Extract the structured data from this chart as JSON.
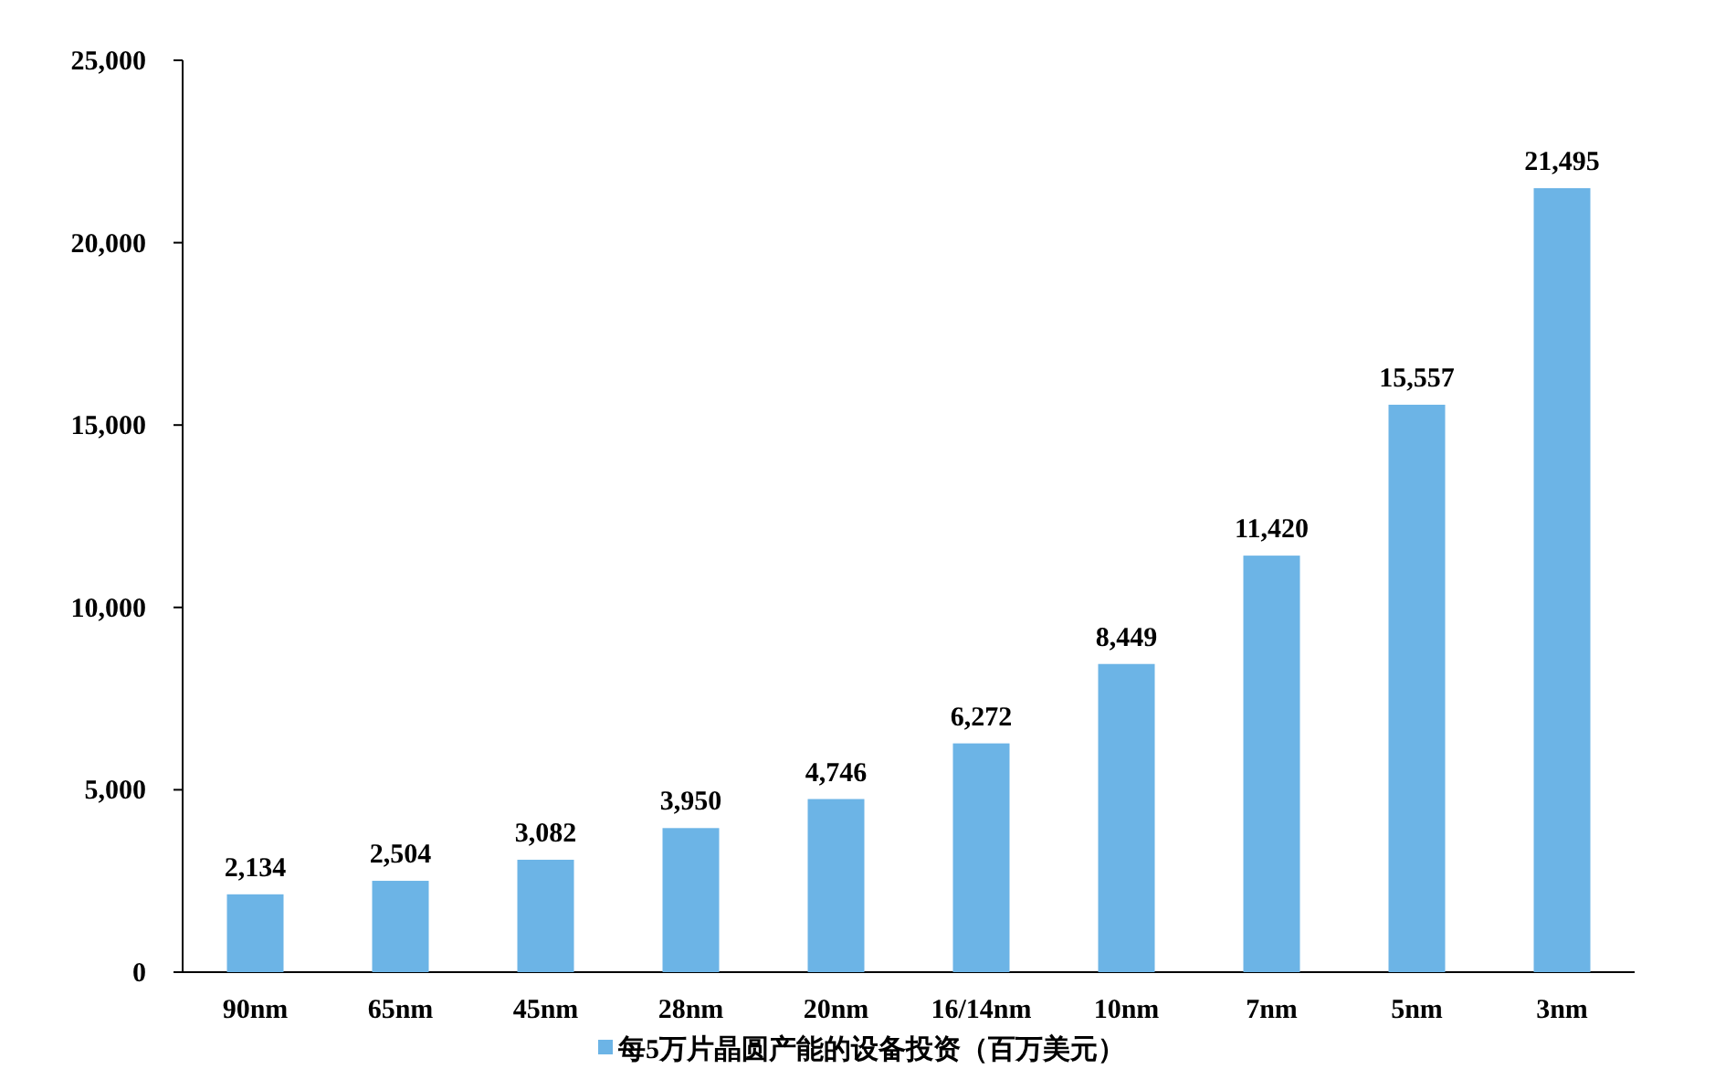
{
  "chart_data": {
    "type": "bar",
    "categories": [
      "90nm",
      "65nm",
      "45nm",
      "28nm",
      "20nm",
      "16/14nm",
      "10nm",
      "7nm",
      "5nm",
      "3nm"
    ],
    "series": [
      {
        "name": "每5万片晶圆产能的设备投资（百万美元）",
        "color": "#6cb4e6",
        "values": [
          2134,
          2504,
          3082,
          3950,
          4746,
          6272,
          8449,
          11420,
          15557,
          21495
        ],
        "value_labels": [
          "2,134",
          "2,504",
          "3,082",
          "3,950",
          "4,746",
          "6,272",
          "8,449",
          "11,420",
          "15,557",
          "21,495"
        ]
      }
    ],
    "ylim": [
      0,
      25000
    ],
    "yticks": [
      {
        "value": 0,
        "label": "0"
      },
      {
        "value": 5000,
        "label": "5,000"
      },
      {
        "value": 10000,
        "label": "10,000"
      },
      {
        "value": 15000,
        "label": "15,000"
      },
      {
        "value": 20000,
        "label": "20,000"
      },
      {
        "value": 25000,
        "label": "25,000"
      }
    ],
    "legend": "bottom"
  }
}
